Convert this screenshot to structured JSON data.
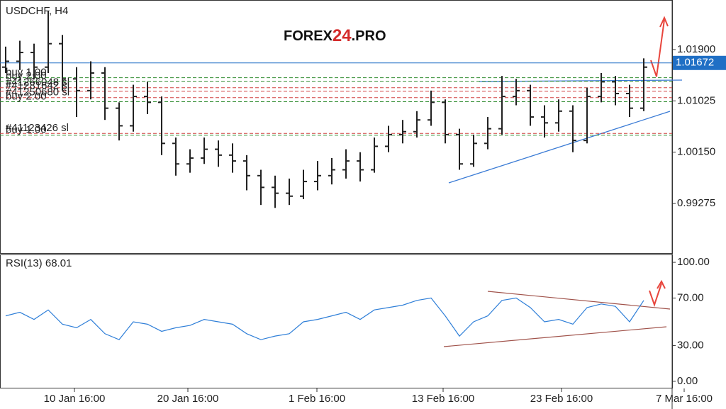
{
  "chart_data": [
    {
      "type": "ohlc",
      "title": "USDCHF, H4",
      "watermark": [
        "FOREX",
        "24",
        ".PRO"
      ],
      "open": [
        1.016,
        1.017,
        1.0185,
        1.016,
        1.02,
        1.014,
        1.012,
        1.015,
        1.009,
        1.006,
        1.011,
        1.01,
        1.003,
        0.9995,
        1.0005,
        1.002,
        1.001,
        1.0,
        0.9975,
        0.9955,
        0.9945,
        0.994,
        0.9965,
        0.9975,
        0.9985,
        1.0,
        0.9985,
        1.0025,
        1.0045,
        1.005,
        1.007,
        1.01,
        1.0045,
        0.9995,
        1.003,
        1.0055,
        1.011,
        1.012,
        1.0075,
        1.0065,
        1.0085,
        1.0035,
        1.011,
        1.0135,
        1.0115,
        1.009
      ],
      "high": [
        1.0195,
        1.0205,
        1.02,
        1.0256,
        1.0215,
        1.016,
        1.017,
        1.016,
        1.01,
        1.013,
        1.0135,
        1.011,
        1.004,
        1.002,
        1.004,
        1.0035,
        1.003,
        1.001,
        0.9985,
        0.9975,
        0.997,
        0.9985,
        1.0,
        1.0005,
        1.002,
        1.0015,
        1.004,
        1.006,
        1.007,
        1.0085,
        1.012,
        1.0105,
        1.0055,
        1.0045,
        1.0075,
        1.0145,
        1.014,
        1.013,
        1.0095,
        1.0105,
        1.0095,
        1.0125,
        1.015,
        1.0145,
        1.013,
        1.0175
      ],
      "low": [
        1.015,
        1.0155,
        1.014,
        1.015,
        1.012,
        1.0075,
        1.0105,
        1.007,
        1.0035,
        1.005,
        1.008,
        1.001,
        0.9975,
        0.998,
        0.9995,
        0.999,
        0.998,
        0.995,
        0.9925,
        0.992,
        0.9925,
        0.9935,
        0.995,
        0.996,
        0.997,
        0.9965,
        0.998,
        1.0015,
        1.003,
        1.004,
        1.006,
        1.003,
        0.9985,
        0.999,
        1.002,
        1.0045,
        1.0095,
        1.006,
        1.004,
        1.005,
        1.0015,
        1.003,
        1.01,
        1.0095,
        1.0075,
        1.0085
      ],
      "close": [
        1.017,
        1.0185,
        1.016,
        1.02,
        1.014,
        1.012,
        1.015,
        1.009,
        1.006,
        1.011,
        1.01,
        1.003,
        0.9995,
        1.0005,
        1.002,
        1.001,
        1.0,
        0.9975,
        0.9955,
        0.9945,
        0.994,
        0.9965,
        0.9975,
        0.9985,
        1.0,
        0.9985,
        1.0025,
        1.0045,
        1.005,
        1.007,
        1.01,
        1.0045,
        0.9995,
        1.003,
        1.0055,
        1.011,
        1.012,
        1.0075,
        1.0065,
        1.0085,
        1.0035,
        1.011,
        1.0135,
        1.0115,
        1.009,
        1.016
      ],
      "color": "#222222",
      "xlim": [
        -0.4,
        47
      ],
      "ylim": [
        0.98418,
        1.02745
      ],
      "yticks": [
        {
          "value": 1.019,
          "label": "1.01900"
        },
        1.01025,
        {
          "value": 1.0015,
          "label": "1.00150"
        },
        0.99275
      ],
      "current_price": 1.01672,
      "current_color": "#1f6fc5",
      "order_lines": [
        {
          "label": "buy 1.00",
          "value": 1.0142,
          "color": "#2e8b2e"
        },
        {
          "label": "#41266048 sl",
          "value": 1.0125,
          "color": "#d04040"
        },
        {
          "label": "#41281642 sl",
          "value": 1.0119,
          "color": "#d04040"
        },
        {
          "label": "buy 2.00",
          "value": 1.0136,
          "color": "#2e8b2e"
        },
        {
          "label": "#41250680 sl",
          "value": 1.0108,
          "color": "#d04040"
        },
        {
          "label": "buy 2.00",
          "value": 1.0101,
          "color": "#2e8b2e"
        },
        {
          "label": "#41123426 sl",
          "value": 1.0047,
          "color": "#d04040"
        },
        {
          "label": "buy 1.00",
          "value": 1.0044,
          "color": "#2e8b2e"
        }
      ]
    },
    {
      "type": "line",
      "title": "RSI(13) 68.01",
      "color": "#2f7fd8",
      "values": [
        55,
        58,
        52,
        60,
        48,
        45,
        52,
        40,
        35,
        50,
        48,
        42,
        45,
        47,
        52,
        50,
        48,
        40,
        35,
        38,
        40,
        50,
        52,
        55,
        58,
        52,
        60,
        62,
        64,
        68,
        70,
        55,
        38,
        50,
        55,
        68,
        70,
        62,
        50,
        52,
        48,
        62,
        65,
        63,
        50,
        68
      ],
      "xlim": [
        -0.4,
        47
      ],
      "ylim": [
        -6,
        106
      ],
      "yticks": [
        {
          "value": 100,
          "label": "100.00"
        },
        {
          "value": 70,
          "label": "70.00"
        },
        {
          "value": 30,
          "label": "30.00"
        },
        {
          "value": 0,
          "label": "0.00"
        }
      ],
      "xticks": [
        {
          "value": 4.85,
          "label": "10 Jan 16:00"
        },
        {
          "value": 12.85,
          "label": "20 Jan 16:00"
        },
        {
          "value": 21.95,
          "label": "1 Feb 16:00"
        },
        {
          "value": 30.85,
          "label": "13 Feb 16:00"
        },
        {
          "value": 39.2,
          "label": "23 Feb 16:00"
        },
        {
          "value": 47.85,
          "label": "7 Mar 16:00"
        }
      ]
    }
  ]
}
